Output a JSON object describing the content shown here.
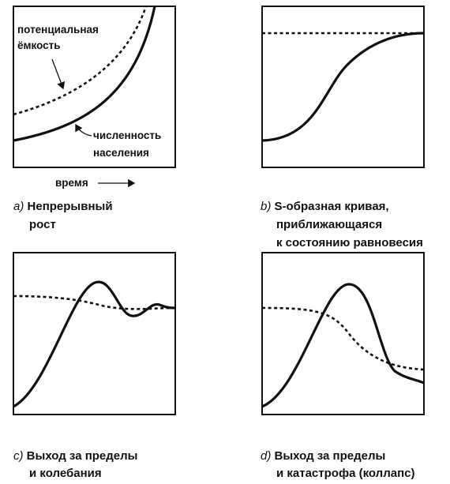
{
  "panels": [
    {
      "labels": [
        "потенциальная",
        "ёмкость",
        "численность",
        "населения"
      ],
      "axis_label": "время",
      "caption": {
        "letter": "a)",
        "lines": [
          "Непрерывный",
          "рост"
        ]
      }
    },
    {
      "caption": {
        "letter": "b)",
        "lines": [
          "S-образная кривая,",
          "приближающаяся",
          "к состоянию равновесия"
        ]
      }
    },
    {
      "caption": {
        "letter": "c)",
        "lines": [
          "Выход за пределы",
          "и колебания"
        ]
      }
    },
    {
      "caption": {
        "letter": "d)",
        "lines": [
          "Выход за пределы",
          "и катастрофа (коллапс)"
        ]
      }
    }
  ]
}
